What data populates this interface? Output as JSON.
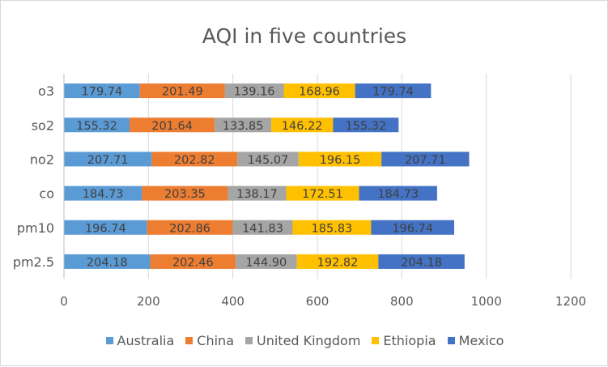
{
  "chart_data": {
    "type": "bar",
    "orientation": "horizontal",
    "stacked": true,
    "title": "AQI in five countries",
    "categories": [
      "pm2.5",
      "pm10",
      "co",
      "no2",
      "so2",
      "o3"
    ],
    "series": [
      {
        "name": "Australia",
        "color": "#5b9bd5",
        "values": [
          204.18,
          196.74,
          184.73,
          207.71,
          155.32,
          179.74
        ]
      },
      {
        "name": "China",
        "color": "#ed7d31",
        "values": [
          202.46,
          202.86,
          203.35,
          202.82,
          201.64,
          201.49
        ]
      },
      {
        "name": "United Kingdom",
        "color": "#a5a5a5",
        "values": [
          144.9,
          141.83,
          138.17,
          145.07,
          133.85,
          139.16
        ]
      },
      {
        "name": "Ethiopia",
        "color": "#ffc000",
        "values": [
          192.82,
          185.83,
          172.51,
          196.15,
          146.22,
          168.96
        ]
      },
      {
        "name": "Mexico",
        "color": "#4472c4",
        "values": [
          204.18,
          196.74,
          184.73,
          207.71,
          155.32,
          179.74
        ]
      }
    ],
    "xlim": [
      0,
      1200
    ],
    "xticks": [
      "0",
      "200",
      "400",
      "600",
      "800",
      "1000",
      "1200"
    ],
    "grid": true,
    "legend_position": "bottom",
    "data_labels": true
  }
}
